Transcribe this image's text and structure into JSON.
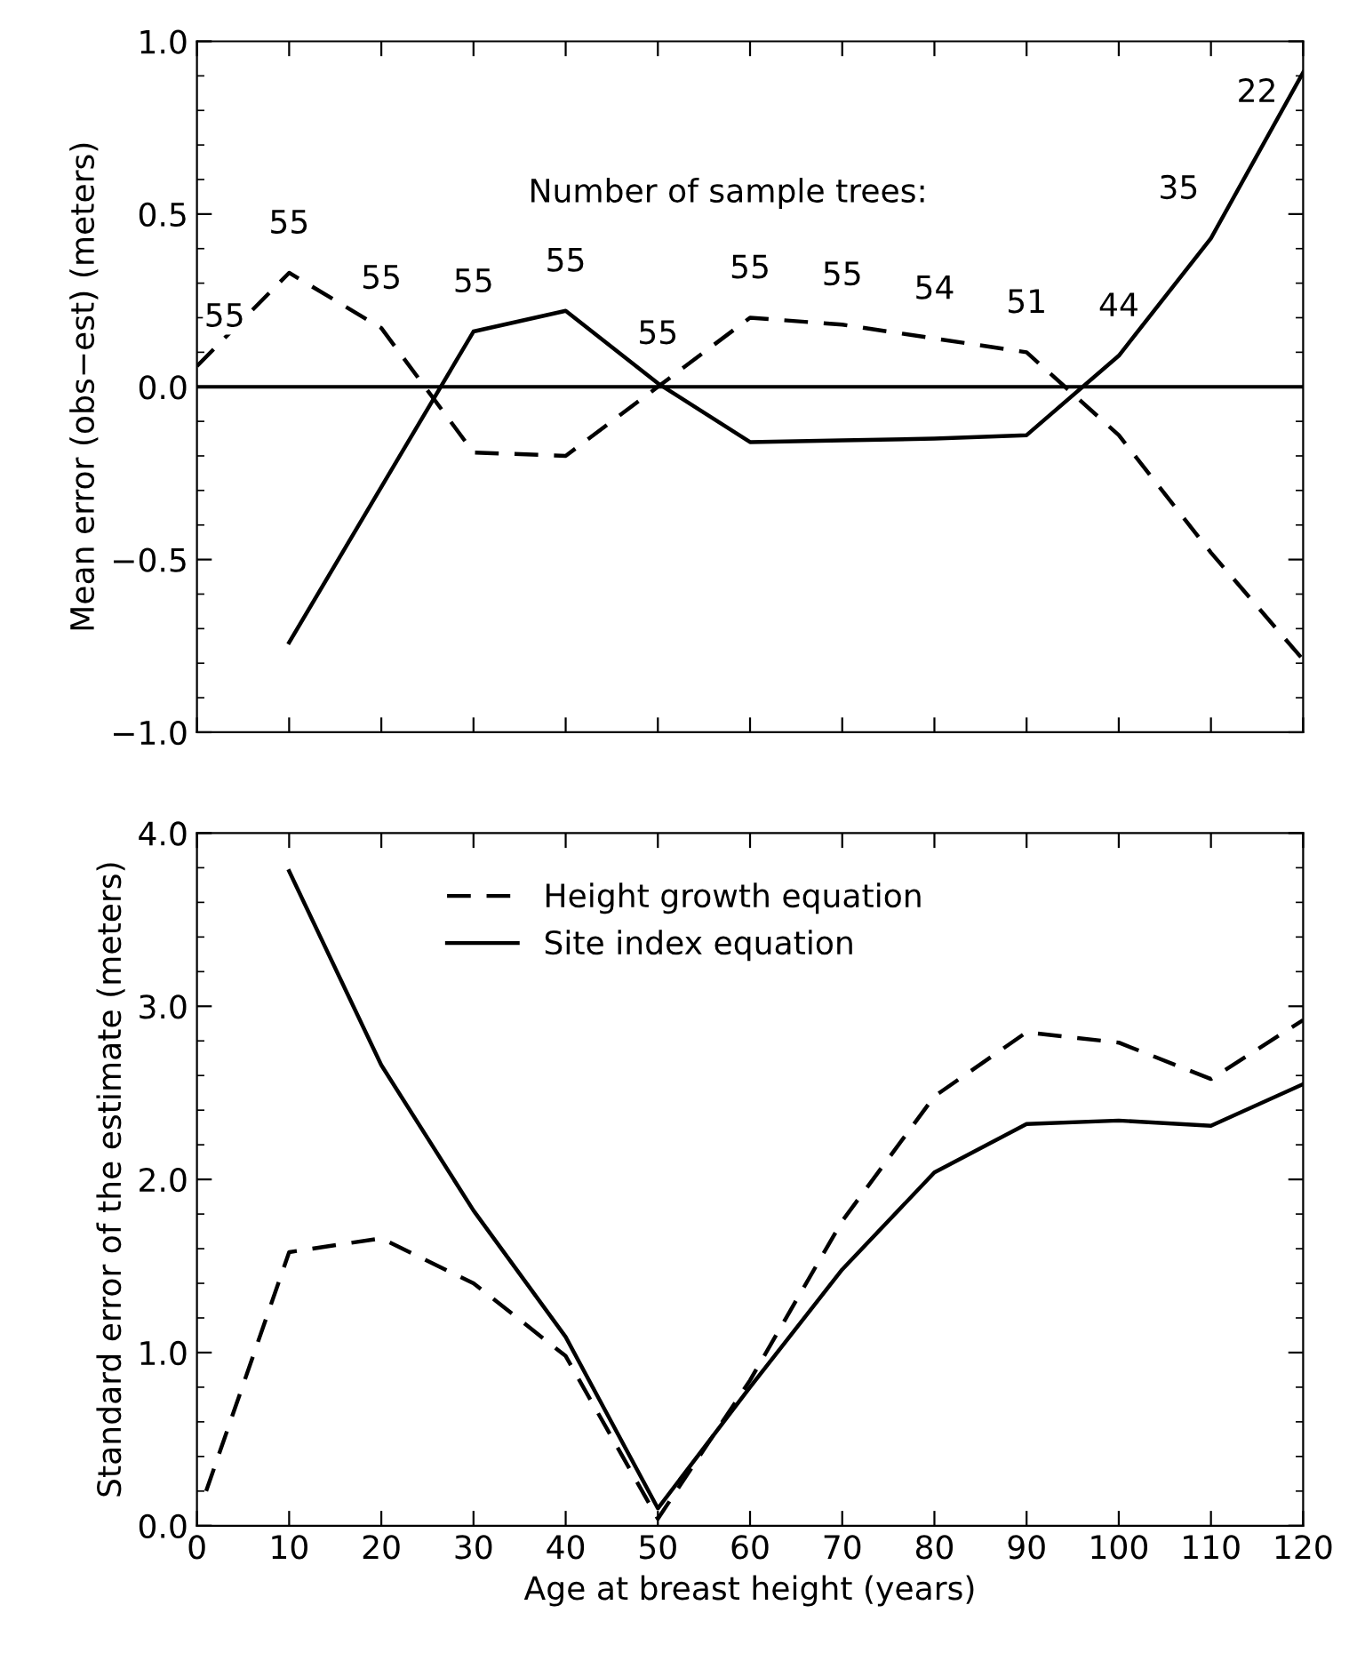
{
  "chart_data": [
    {
      "type": "line",
      "ylabel": "Mean error (obs−est) (meters)",
      "xlim": [
        0,
        120
      ],
      "xticks": [
        {
          "value": 0,
          "label": null
        },
        {
          "value": 10,
          "label": null
        },
        {
          "value": 20,
          "label": null
        },
        {
          "value": 30,
          "label": null
        },
        {
          "value": 40,
          "label": null
        },
        {
          "value": 50,
          "label": null
        },
        {
          "value": 60,
          "label": null
        },
        {
          "value": 70,
          "label": null
        },
        {
          "value": 80,
          "label": null
        },
        {
          "value": 90,
          "label": null
        },
        {
          "value": 100,
          "label": null
        },
        {
          "value": 110,
          "label": null
        },
        {
          "value": 120,
          "label": null
        }
      ],
      "ylim": [
        -1.0,
        1.0
      ],
      "yticks": [
        {
          "value": -1.0,
          "label": "−1.0"
        },
        {
          "value": -0.5,
          "label": "−0.5"
        },
        {
          "value": 0,
          "label": "0.0"
        },
        {
          "value": 0.5,
          "label": "0.5"
        },
        {
          "value": 1.0,
          "label": "1.0"
        }
      ],
      "tick_labels": "y",
      "grid": false,
      "legend": false,
      "ref_lines": [
        {
          "axis": "y",
          "value": 0,
          "color": "#000000",
          "line_style": "solid"
        }
      ],
      "series": [
        {
          "color": "#000000",
          "line_style": "dashed",
          "x": [
            0,
            10,
            20,
            30,
            40,
            50,
            60,
            70,
            80,
            90,
            100,
            110,
            120
          ],
          "values": [
            0.06,
            0.33,
            0.17,
            -0.19,
            -0.2,
            0.0,
            0.2,
            0.18,
            0.14,
            0.1,
            -0.14,
            -0.48,
            -0.79
          ]
        },
        {
          "color": "#000000",
          "line_style": "solid",
          "x": [
            10,
            30,
            40,
            50,
            60,
            70,
            80,
            90,
            100,
            110,
            120
          ],
          "values": [
            -0.74,
            0.16,
            0.22,
            0.01,
            -0.16,
            -0.155,
            -0.15,
            -0.14,
            0.09,
            0.43,
            0.91
          ]
        }
      ],
      "annotations": [
        "Number of sample trees:",
        "55",
        "55",
        "55",
        "55",
        "55",
        "55",
        "55",
        "55",
        "54",
        "51",
        "44",
        "35",
        "22"
      ]
    },
    {
      "type": "line",
      "xlabel": "Age at breast height (years)",
      "ylabel": "Standard error of the estimate (meters)",
      "xlim": [
        0,
        120
      ],
      "xticks": [
        0,
        10,
        20,
        30,
        40,
        50,
        60,
        70,
        80,
        90,
        100,
        110,
        120
      ],
      "ylim": [
        0,
        4.0
      ],
      "yticks": [
        {
          "value": 0,
          "label": "0.0"
        },
        {
          "value": 1,
          "label": "1.0"
        },
        {
          "value": 2,
          "label": "2.0"
        },
        {
          "value": 3,
          "label": "3.0"
        },
        {
          "value": 4,
          "label": "4.0"
        }
      ],
      "grid": false,
      "legend": "top left",
      "series": [
        {
          "name": "Height growth equation",
          "color": "#000000",
          "line_style": "dashed",
          "x": [
            1,
            10,
            20,
            30,
            40,
            50,
            60,
            70,
            80,
            90,
            100,
            110,
            120
          ],
          "values": [
            0.2,
            1.58,
            1.66,
            1.4,
            0.98,
            0.04,
            0.84,
            1.76,
            2.48,
            2.85,
            2.79,
            2.58,
            2.92
          ]
        },
        {
          "name": "Site index equation",
          "color": "#000000",
          "line_style": "solid",
          "x": [
            10,
            20,
            30,
            40,
            50,
            60,
            70,
            80,
            90,
            100,
            110,
            120
          ],
          "values": [
            3.78,
            2.66,
            1.82,
            1.09,
            0.1,
            0.8,
            1.48,
            2.04,
            2.32,
            2.34,
            2.31,
            2.55
          ]
        }
      ]
    }
  ]
}
